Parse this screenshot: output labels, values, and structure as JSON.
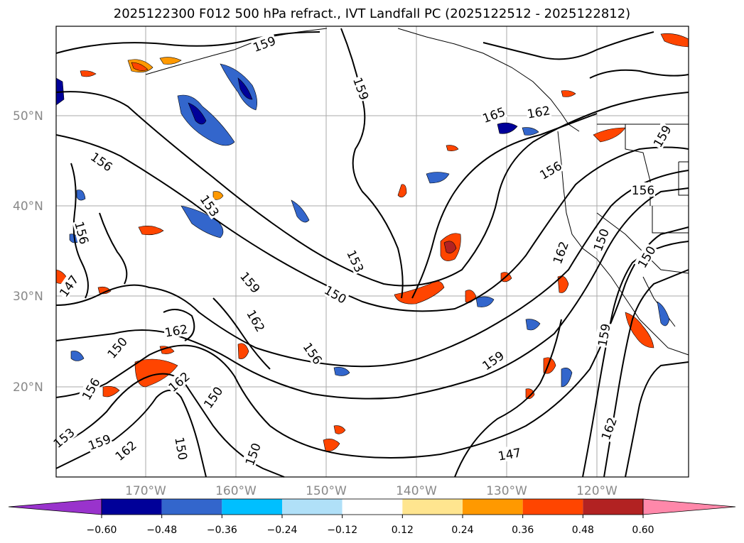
{
  "title": "2025122300 F012 500 hPa refract., IVT Landfall PC (2025122512 - 2025122812)",
  "lat_labels": [
    "50°N",
    "40°N",
    "30°N",
    "20°N"
  ],
  "lon_labels": [
    "170°W",
    "160°W",
    "150°W",
    "140°W",
    "130°W",
    "120°W"
  ],
  "contour_labels": [
    "159",
    "159",
    "156",
    "165",
    "162",
    "156",
    "153",
    "156",
    "153",
    "156",
    "159",
    "150",
    "159",
    "162",
    "162",
    "150",
    "156",
    "150",
    "150",
    "147",
    "162",
    "159",
    "150",
    "156",
    "153",
    "162",
    "150",
    "162",
    "150",
    "159",
    "147",
    "159",
    "162"
  ],
  "colorbar": {
    "ticks": [
      "−0.60",
      "−0.48",
      "−0.36",
      "−0.24",
      "−0.12",
      "0.12",
      "0.24",
      "0.36",
      "0.48",
      "0.60"
    ],
    "colors": [
      "#9933cc",
      "#000099",
      "#3366cc",
      "#00bfff",
      "#b0e0f8",
      "#ffffff",
      "#ffe58f",
      "#ff9900",
      "#ff4500",
      "#b22222",
      "#ff88aa"
    ]
  }
}
